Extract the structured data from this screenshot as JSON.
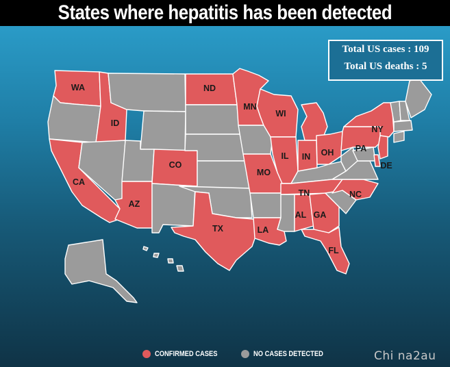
{
  "title": "States where hepatitis has been detected",
  "stats": {
    "total_cases": "Total US cases : 109",
    "total_deaths": "Total US deaths : 5"
  },
  "legend": {
    "confirmed_label": "CONFIRMED CASES",
    "none_label": "NO CASES DETECTED"
  },
  "colors": {
    "confirmed": "#e05a5c",
    "none": "#9b9b9b",
    "ocean_top": "#2a9bc7",
    "ocean_bottom": "#0f3346"
  },
  "watermark": "Chi na2au",
  "states": [
    {
      "id": "WA",
      "status": "confirmed",
      "label": "WA"
    },
    {
      "id": "OR",
      "status": "none"
    },
    {
      "id": "CA",
      "status": "confirmed",
      "label": "CA"
    },
    {
      "id": "ID",
      "status": "confirmed",
      "label": "ID"
    },
    {
      "id": "NV",
      "status": "none"
    },
    {
      "id": "MT",
      "status": "none"
    },
    {
      "id": "WY",
      "status": "none"
    },
    {
      "id": "UT",
      "status": "none"
    },
    {
      "id": "AZ",
      "status": "confirmed",
      "label": "AZ"
    },
    {
      "id": "CO",
      "status": "confirmed",
      "label": "CO"
    },
    {
      "id": "NM",
      "status": "none"
    },
    {
      "id": "ND",
      "status": "confirmed",
      "label": "ND"
    },
    {
      "id": "SD",
      "status": "none"
    },
    {
      "id": "NE",
      "status": "none"
    },
    {
      "id": "KS",
      "status": "none"
    },
    {
      "id": "OK",
      "status": "none"
    },
    {
      "id": "TX",
      "status": "confirmed",
      "label": "TX"
    },
    {
      "id": "MN",
      "status": "confirmed",
      "label": "MN"
    },
    {
      "id": "IA",
      "status": "none"
    },
    {
      "id": "MO",
      "status": "confirmed",
      "label": "MO"
    },
    {
      "id": "AR",
      "status": "none"
    },
    {
      "id": "LA",
      "status": "confirmed",
      "label": "LA"
    },
    {
      "id": "WI",
      "status": "confirmed",
      "label": "WI"
    },
    {
      "id": "IL",
      "status": "confirmed",
      "label": "IL"
    },
    {
      "id": "MI",
      "status": "confirmed"
    },
    {
      "id": "IN",
      "status": "confirmed",
      "label": "IN"
    },
    {
      "id": "OH",
      "status": "confirmed",
      "label": "OH"
    },
    {
      "id": "KY",
      "status": "none"
    },
    {
      "id": "TN",
      "status": "confirmed",
      "label": "TN"
    },
    {
      "id": "MS",
      "status": "none"
    },
    {
      "id": "AL",
      "status": "confirmed",
      "label": "AL"
    },
    {
      "id": "GA",
      "status": "confirmed",
      "label": "GA"
    },
    {
      "id": "FL",
      "status": "confirmed",
      "label": "FL"
    },
    {
      "id": "SC",
      "status": "none"
    },
    {
      "id": "NC",
      "status": "confirmed",
      "label": "NC"
    },
    {
      "id": "VA",
      "status": "none"
    },
    {
      "id": "WV",
      "status": "none"
    },
    {
      "id": "PA",
      "status": "confirmed",
      "label": "PA"
    },
    {
      "id": "NY",
      "status": "confirmed",
      "label": "NY"
    },
    {
      "id": "NJ",
      "status": "confirmed"
    },
    {
      "id": "DE",
      "status": "confirmed",
      "label": "DE"
    },
    {
      "id": "MD",
      "status": "none"
    },
    {
      "id": "CT",
      "status": "none"
    },
    {
      "id": "MA",
      "status": "none"
    },
    {
      "id": "VT",
      "status": "none"
    },
    {
      "id": "NH",
      "status": "none"
    },
    {
      "id": "ME",
      "status": "none"
    },
    {
      "id": "AK",
      "status": "none"
    },
    {
      "id": "HI",
      "status": "none"
    }
  ]
}
